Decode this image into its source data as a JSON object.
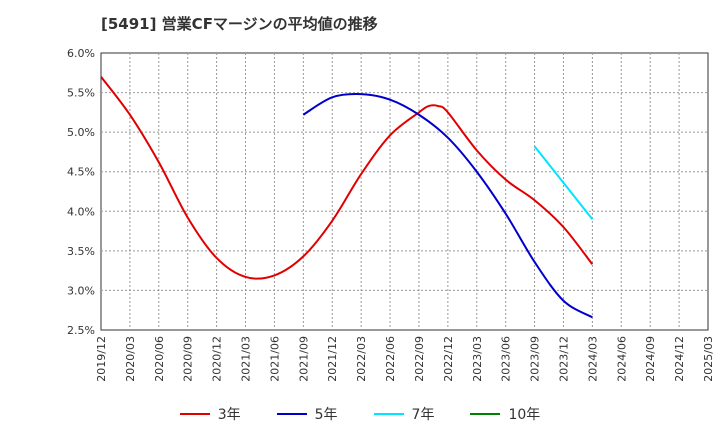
{
  "chart_data": {
    "type": "line",
    "title": "[5491]  営業CFマージンの平均値の推移",
    "xlabel": "",
    "ylabel": "",
    "ylim": [
      2.5,
      6.0
    ],
    "yticks": [
      "2.5%",
      "3.0%",
      "3.5%",
      "4.0%",
      "4.5%",
      "5.0%",
      "5.5%",
      "6.0%"
    ],
    "x_ticks": [
      "2019/12",
      "2020/03",
      "2020/06",
      "2020/09",
      "2020/12",
      "2021/03",
      "2021/06",
      "2021/09",
      "2021/12",
      "2022/03",
      "2022/06",
      "2022/09",
      "2022/12",
      "2023/03",
      "2023/06",
      "2023/09",
      "2023/12",
      "2024/03",
      "2024/06",
      "2024/09",
      "2024/12",
      "2025/03"
    ],
    "grid": true,
    "legend_position": "bottom",
    "series": [
      {
        "name": "3年",
        "color": "#e00000",
        "x": [
          "2019/12",
          "2020/03",
          "2020/06",
          "2020/09",
          "2020/12",
          "2021/03",
          "2021/06",
          "2021/09",
          "2021/12",
          "2022/03",
          "2022/06",
          "2022/09",
          "2022/10",
          "2022/11",
          "2022/12",
          "2023/03",
          "2023/06",
          "2023/09",
          "2023/12",
          "2024/03"
        ],
        "values": [
          5.7,
          5.22,
          4.62,
          3.92,
          3.41,
          3.17,
          3.19,
          3.43,
          3.88,
          4.47,
          4.96,
          5.25,
          5.33,
          5.33,
          5.25,
          4.77,
          4.4,
          4.14,
          3.8,
          3.33
        ]
      },
      {
        "name": "5年",
        "color": "#0000cc",
        "x": [
          "2021/09",
          "2021/12",
          "2022/03",
          "2022/06",
          "2022/09",
          "2022/12",
          "2023/03",
          "2023/06",
          "2023/09",
          "2023/12",
          "2024/03"
        ],
        "values": [
          5.22,
          5.44,
          5.48,
          5.41,
          5.22,
          4.93,
          4.5,
          3.97,
          3.36,
          2.87,
          2.66
        ]
      },
      {
        "name": "7年",
        "color": "#00e5ff",
        "x": [
          "2023/09",
          "2024/03"
        ],
        "values": [
          4.82,
          3.9
        ]
      },
      {
        "name": "10年",
        "color": "#008000",
        "x": [],
        "values": []
      }
    ]
  }
}
